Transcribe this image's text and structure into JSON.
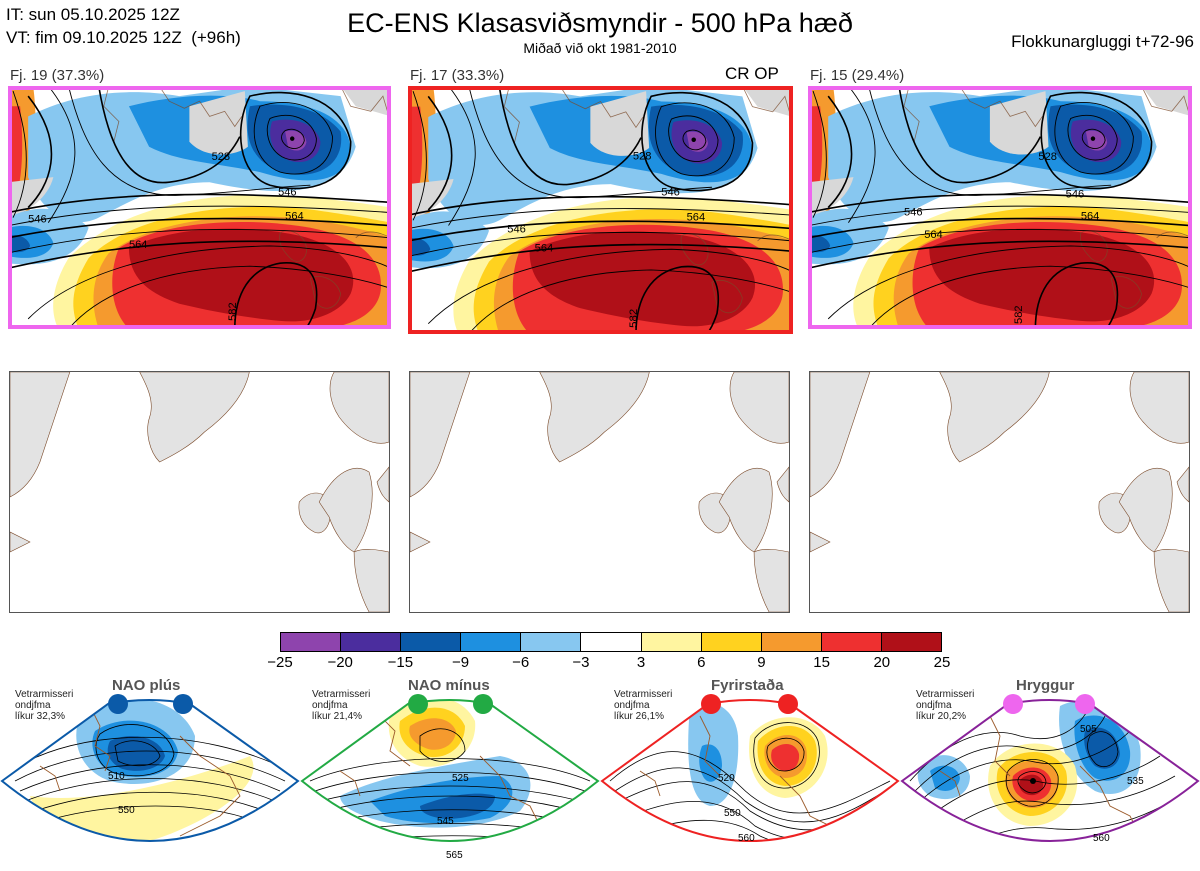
{
  "header": {
    "it_line": "IT: sun 05.10.2025 12Z",
    "vt_line": "VT: fim 09.10.2025 12Z  (+96h)",
    "title": "EC-ENS Klasasviðsmyndir - 500 hPa hæð",
    "subtitle": "Miðað við okt 1981-2010",
    "window": "Flokkunargluggi t+72-96"
  },
  "clusters": [
    {
      "label": "Fj. 19 (37.3%)",
      "border_color": "#ee66ee",
      "members": 19,
      "percent": 37.3,
      "contours": [
        "528",
        "546",
        "564",
        "582"
      ]
    },
    {
      "label": "Fj. 17 (33.3%)",
      "border_color": "#ee2222",
      "members": 17,
      "percent": 33.3,
      "contours": [
        "528",
        "546",
        "564",
        "582"
      ],
      "tag": "CR OP"
    },
    {
      "label": "Fj. 15 (29.4%)",
      "border_color": "#ee66ee",
      "members": 15,
      "percent": 29.4,
      "contours": [
        "528",
        "546",
        "564",
        "582"
      ]
    }
  ],
  "colorbar": {
    "ticks": [
      "−25",
      "−20",
      "−15",
      "−9",
      "−6",
      "−3",
      "3",
      "6",
      "9",
      "15",
      "20",
      "25"
    ],
    "colors": [
      "#8e44ad",
      "#4b2d9e",
      "#0b5aa8",
      "#1e90e0",
      "#87c7f0",
      "#ffffff",
      "#fff5a0",
      "#ffd21f",
      "#f59a2e",
      "#ee3030",
      "#b01018"
    ]
  },
  "regimes": [
    {
      "name": "NAO plús",
      "note": [
        "Vetrarmisseri",
        "ondjfma",
        "líkur 32,3%"
      ],
      "probability": 32.3,
      "dot_color": "#0b5aa8",
      "edge_color": "#0b5aa8",
      "contours": [
        "510",
        "550"
      ]
    },
    {
      "name": "NAO mínus",
      "note": [
        "Vetrarmisseri",
        "ondjfma",
        "líkur 21,4%"
      ],
      "probability": 21.4,
      "dot_color": "#22aa44",
      "edge_color": "#22aa44",
      "contours": [
        "525",
        "545",
        "565"
      ]
    },
    {
      "name": "Fyrirstaða",
      "note": [
        "Vetrarmisseri",
        "ondjfma",
        "líkur 26,1%"
      ],
      "probability": 26.1,
      "dot_color": "#ee2222",
      "edge_color": "#ee2222",
      "contours": [
        "520",
        "550",
        "560"
      ]
    },
    {
      "name": "Hryggur",
      "note": [
        "Vetrarmisseri",
        "ondjfma",
        "líkur 20,2%"
      ],
      "probability": 20.2,
      "dot_color": "#ee66ee",
      "edge_color": "#882299",
      "contours": [
        "505",
        "535",
        "560"
      ]
    }
  ]
}
